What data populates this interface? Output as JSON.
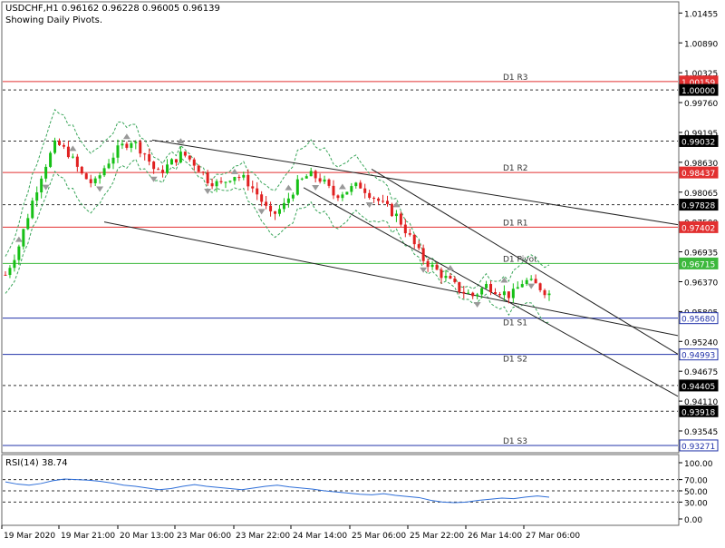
{
  "header": {
    "symbol_line": "USDCHF,H1  0.96162 0.96228 0.96005 0.96139",
    "subtitle": "Showing Daily Pivots."
  },
  "colors": {
    "bull": "#16c016",
    "bear": "#e02020",
    "resistance": "#e23030",
    "pivot": "#3cb83c",
    "support": "#2233aa",
    "axis": "#2233aa",
    "channel": "#222222",
    "bands": "#3aa55a",
    "rsi": "#2f6fd8"
  },
  "chart_data": [
    {
      "type": "candlestick",
      "title": "USDCHF,H1",
      "ylim": [
        0.9315,
        1.0165
      ],
      "y_ticks": [
        "1.01455",
        "1.00890",
        "1.00325",
        "0.99760",
        "0.99195",
        "0.98630",
        "0.98065",
        "0.97500",
        "0.96935",
        "0.96370",
        "0.95805",
        "0.95240",
        "0.94675",
        "0.94110",
        "0.93545"
      ],
      "x_ticks": [
        "19 Mar 2020",
        "19 Mar 21:00",
        "20 Mar 13:00",
        "23 Mar 06:00",
        "23 Mar 22:00",
        "24 Mar 14:00",
        "25 Mar 06:00",
        "25 Mar 22:00",
        "26 Mar 14:00",
        "27 Mar 06:00"
      ],
      "price_path": [
        0.965,
        0.97,
        0.978,
        0.985,
        0.99,
        0.988,
        0.984,
        0.982,
        0.986,
        0.989,
        0.9905,
        0.988,
        0.984,
        0.986,
        0.988,
        0.986,
        0.983,
        0.982,
        0.984,
        0.983,
        0.98,
        0.976,
        0.978,
        0.982,
        0.984,
        0.983,
        0.98,
        0.981,
        0.982,
        0.98,
        0.978,
        0.976,
        0.972,
        0.968,
        0.966,
        0.964,
        0.962,
        0.961,
        0.963,
        0.962,
        0.961,
        0.964,
        0.963,
        0.9614
      ],
      "pivot_levels": [
        {
          "label": "D1 R3",
          "value": 1.00159
        },
        {
          "label": "D1 R2",
          "value": 0.98437
        },
        {
          "label": "D1 R1",
          "value": 0.97402
        },
        {
          "label": "D1 Pivot",
          "value": 0.96715
        },
        {
          "label": "D1 S1",
          "value": 0.9568
        },
        {
          "label": "D1 S2",
          "value": 0.94993
        },
        {
          "label": "D1 S3",
          "value": 0.93271
        }
      ],
      "price_boxes": [
        {
          "text": "1.00159",
          "value": 1.00159,
          "style": "red"
        },
        {
          "text": "1.00000",
          "value": 1.0,
          "style": "black"
        },
        {
          "text": "0.99032",
          "value": 0.99032,
          "style": "black"
        },
        {
          "text": "0.98437",
          "value": 0.98437,
          "style": "red"
        },
        {
          "text": "0.97828",
          "value": 0.97828,
          "style": "black"
        },
        {
          "text": "0.97402",
          "value": 0.97402,
          "style": "red"
        },
        {
          "text": "0.96715",
          "value": 0.96715,
          "style": "green"
        },
        {
          "text": "0.95680",
          "value": 0.9568,
          "style": "blue"
        },
        {
          "text": "0.94993",
          "value": 0.94993,
          "style": "blue"
        },
        {
          "text": "0.94405",
          "value": 0.94405,
          "style": "black"
        },
        {
          "text": "0.93918",
          "value": 0.93918,
          "style": "black"
        },
        {
          "text": "0.93271",
          "value": 0.93271,
          "style": "blue"
        }
      ],
      "dotted_levels": [
        1.0,
        0.99032,
        0.97828,
        0.94405,
        0.93918
      ]
    },
    {
      "type": "line",
      "title": "RSI(14) 38.74",
      "ylim": [
        0,
        100
      ],
      "y_ticks": [
        "100.00",
        "70.00",
        "50.00",
        "30.00",
        "0.00"
      ],
      "levels": [
        70,
        50,
        30
      ],
      "values": [
        66,
        62,
        60,
        63,
        68,
        71,
        70,
        69,
        67,
        64,
        60,
        58,
        55,
        52,
        54,
        58,
        61,
        58,
        56,
        54,
        52,
        55,
        58,
        60,
        57,
        55,
        53,
        50,
        48,
        46,
        44,
        43,
        45,
        42,
        40,
        38,
        33,
        30,
        29,
        30,
        33,
        35,
        37,
        36,
        39,
        41,
        38.74
      ]
    }
  ]
}
